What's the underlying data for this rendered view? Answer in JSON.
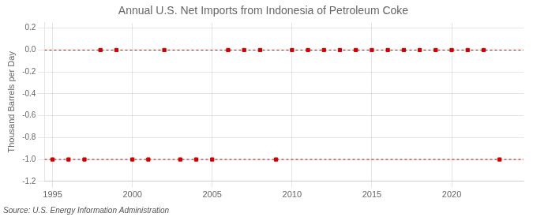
{
  "chart_data": {
    "type": "scatter",
    "title": "Annual U.S. Net Imports from Indonesia of Petroleum Coke",
    "ylabel": "Thousand Barrels per Day",
    "annotation": "Source: U.S. Energy Information Administration",
    "x": [
      1995,
      1996,
      1997,
      1998,
      1999,
      2000,
      2001,
      2002,
      2003,
      2004,
      2005,
      2006,
      2007,
      2008,
      2009,
      2010,
      2011,
      2012,
      2013,
      2014,
      2015,
      2016,
      2017,
      2018,
      2019,
      2020,
      2021,
      2022,
      2023
    ],
    "values": [
      -1,
      -1,
      -1,
      0,
      0,
      -1,
      -1,
      0,
      -1,
      -1,
      -1,
      0,
      0,
      0,
      -1,
      0,
      0,
      0,
      0,
      0,
      0,
      0,
      0,
      0,
      0,
      0,
      0,
      0,
      -1
    ],
    "color": "#cc0000",
    "marker": "square",
    "hlines": [
      0.0,
      -1.0
    ],
    "xlim": [
      1994.5,
      2024.5
    ],
    "xticks": [
      1995,
      2000,
      2005,
      2010,
      2015,
      2020
    ],
    "ylim": [
      -1.2,
      0.25
    ],
    "yticks": [
      0.2,
      {
        "value": 0,
        "label": "0.0"
      },
      -0.2,
      -0.4,
      -0.6,
      -0.8,
      {
        "value": -1,
        "label": "-1.0"
      },
      -1.2
    ],
    "grid": true
  }
}
